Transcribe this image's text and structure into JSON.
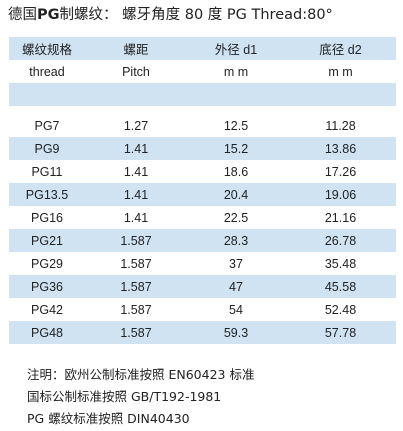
{
  "title": {
    "prefix": "德国",
    "bold": "PG",
    "label": "制螺纹：",
    "desc": "螺牙角度 80 度 PG Thread:80°"
  },
  "header": {
    "zh": [
      "螺纹规格",
      "螺距",
      "外径 d1",
      "底径 d2"
    ],
    "en": [
      "thread",
      "Pitch",
      "m m",
      "m m"
    ]
  },
  "rows": [
    [
      "PG7",
      "1.27",
      "12.5",
      "11.28"
    ],
    [
      "PG9",
      "1.41",
      "15.2",
      "13.86"
    ],
    [
      "PG11",
      "1.41",
      "18.6",
      "17.26"
    ],
    [
      "PG13.5",
      "1.41",
      "20.4",
      "19.06"
    ],
    [
      "PG16",
      "1.41",
      "22.5",
      "21.16"
    ],
    [
      "PG21",
      "1.587",
      "28.3",
      "26.78"
    ],
    [
      "PG29",
      "1.587",
      "37",
      "35.48"
    ],
    [
      "PG36",
      "1.587",
      "47",
      "45.58"
    ],
    [
      "PG42",
      "1.587",
      "54",
      "52.48"
    ],
    [
      "PG48",
      "1.587",
      "59.3",
      "57.78"
    ]
  ],
  "notes": [
    "注明：欧州公制标准按照 EN60423 标准",
    "国标公制标准按照 GB/T192-1981",
    "PG 螺纹标准按照  DIN40430"
  ],
  "colors": {
    "band": "#cfe3f3",
    "text": "#222222"
  }
}
